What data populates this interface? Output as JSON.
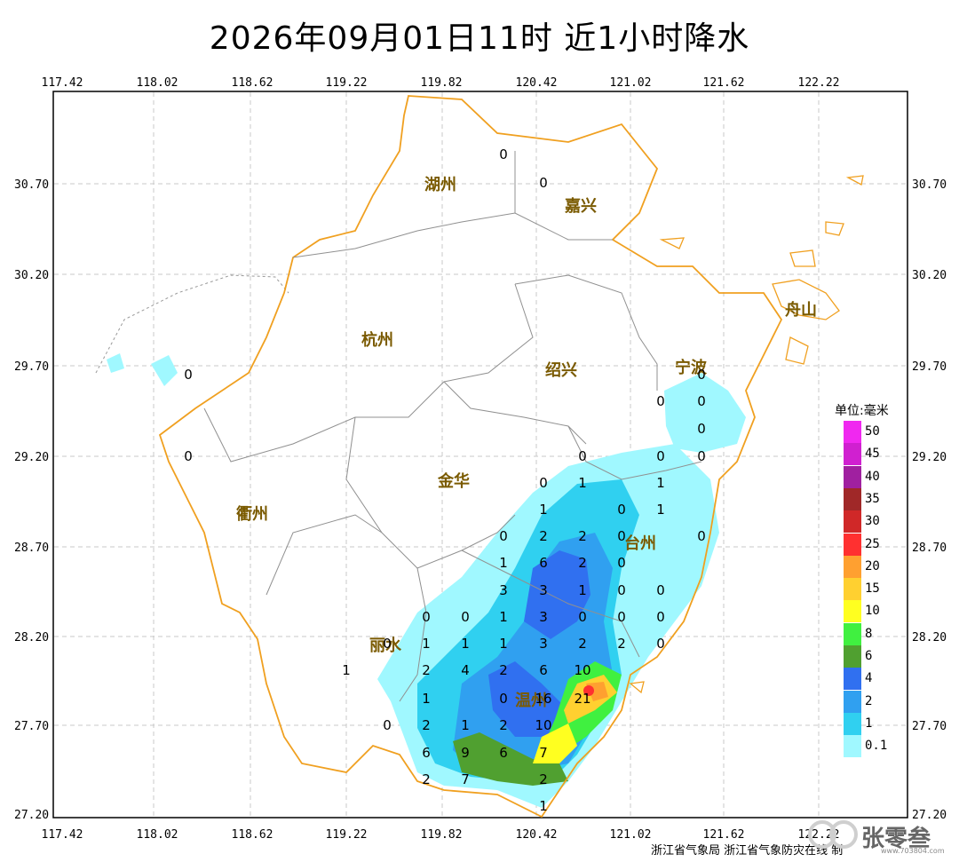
{
  "title": "2026年09月01日11时  近1小时降水",
  "lon_ticks": [
    "117.42",
    "118.02",
    "118.62",
    "119.22",
    "119.82",
    "120.42",
    "121.02",
    "121.62",
    "122.22"
  ],
  "lat_ticks": [
    "30.70",
    "30.20",
    "29.70",
    "29.20",
    "28.70",
    "28.20",
    "27.70",
    "27.20"
  ],
  "cities": [
    {
      "name": "湖州"
    },
    {
      "name": "嘉兴"
    },
    {
      "name": "杭州"
    },
    {
      "name": "绍兴"
    },
    {
      "name": "宁波"
    },
    {
      "name": "舟山"
    },
    {
      "name": "衢州"
    },
    {
      "name": "金华"
    },
    {
      "name": "台州"
    },
    {
      "name": "丽水"
    },
    {
      "name": "温州"
    }
  ],
  "station_values": [
    "0",
    "0",
    "0",
    "0",
    "0",
    "0",
    "0",
    "0",
    "0",
    "0",
    "0",
    "0",
    "1",
    "1",
    "1",
    "0",
    "1",
    "0",
    "2",
    "2",
    "0",
    "0",
    "1",
    "6",
    "2",
    "0",
    "3",
    "3",
    "1",
    "0",
    "0",
    "0",
    "0",
    "1",
    "3",
    "0",
    "0",
    "0",
    "1",
    "1",
    "1",
    "3",
    "2",
    "2",
    "0",
    "0",
    "2",
    "4",
    "2",
    "6",
    "10",
    "1",
    "1",
    "0",
    "16",
    "21",
    "0",
    "2",
    "1",
    "2",
    "10",
    "6",
    "9",
    "6",
    "7",
    "2",
    "7",
    "2",
    "1"
  ],
  "legend": {
    "title": "单位:毫米",
    "levels": [
      {
        "label": "50",
        "color": "#f028f0"
      },
      {
        "label": "45",
        "color": "#d020d0"
      },
      {
        "label": "40",
        "color": "#a020a0"
      },
      {
        "label": "35",
        "color": "#a02828"
      },
      {
        "label": "30",
        "color": "#d02828"
      },
      {
        "label": "25",
        "color": "#ff3030"
      },
      {
        "label": "20",
        "color": "#ffa030"
      },
      {
        "label": "15",
        "color": "#ffd030"
      },
      {
        "label": "10",
        "color": "#ffff20"
      },
      {
        "label": "8",
        "color": "#40f040"
      },
      {
        "label": "6",
        "color": "#50a030"
      },
      {
        "label": "4",
        "color": "#3070f0"
      },
      {
        "label": "2",
        "color": "#30a0f0"
      },
      {
        "label": "1",
        "color": "#30d0f0"
      },
      {
        "label": "0.1",
        "color": "#a0f8ff"
      }
    ]
  },
  "credit": "浙江省气象局  浙江省气象防灾在线  制",
  "watermark": {
    "text": "张零叁",
    "url": "www.703804.com"
  },
  "colors": {
    "province_border": "#f0a020",
    "city_border": "#909090",
    "grid": "#c8c8c8"
  }
}
